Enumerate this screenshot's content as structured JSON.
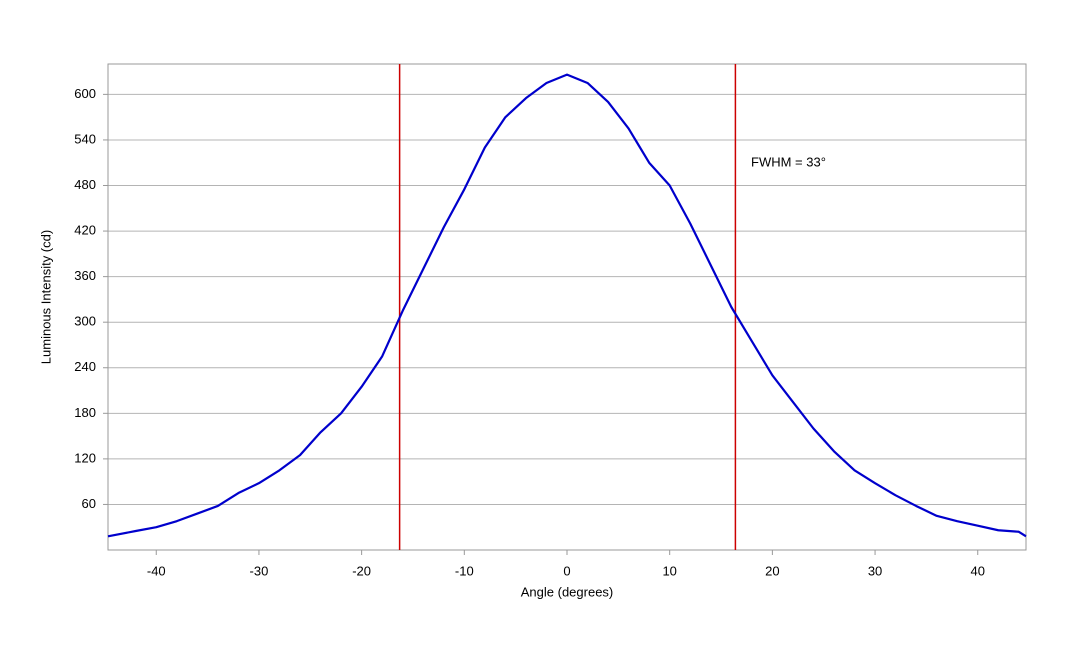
{
  "chart_data": {
    "type": "line",
    "x_label": "Angle (degrees)",
    "y_label": "Luminous Intensity (cd)",
    "annotation": "FWHM = 33°",
    "x": [
      -44.7,
      -42,
      -40,
      -38,
      -36,
      -34,
      -32,
      -30,
      -28,
      -26,
      -24,
      -22,
      -20,
      -18,
      -16,
      -14,
      -12,
      -10,
      -8,
      -6,
      -4,
      -2,
      0,
      2,
      4,
      6,
      8,
      10,
      12,
      14,
      16,
      18,
      20,
      22,
      24,
      26,
      28,
      30,
      32,
      34,
      36,
      38,
      40,
      42,
      44,
      44.7
    ],
    "series": [
      {
        "color": "#0000cc",
        "values": [
          18,
          25,
          30,
          38,
          48,
          58,
          75,
          88,
          105,
          125,
          155,
          180,
          215,
          255,
          315,
          370,
          425,
          475,
          530,
          570,
          595,
          615,
          626,
          615,
          590,
          555,
          510,
          480,
          430,
          375,
          320,
          275,
          230,
          195,
          160,
          130,
          105,
          88,
          72,
          58,
          45,
          38,
          32,
          26,
          24,
          18
        ]
      }
    ],
    "vlines": [
      -16.3,
      16.4
    ],
    "vline_color": "#cc0000",
    "xlim": [
      -44.7,
      44.7
    ],
    "xticks": [
      -40,
      -30,
      -20,
      -10,
      0,
      10,
      20,
      30,
      40
    ],
    "ylim": [
      0,
      640
    ],
    "yticks": [
      60,
      120,
      180,
      240,
      300,
      360,
      420,
      480,
      540,
      600
    ],
    "grid": true
  }
}
